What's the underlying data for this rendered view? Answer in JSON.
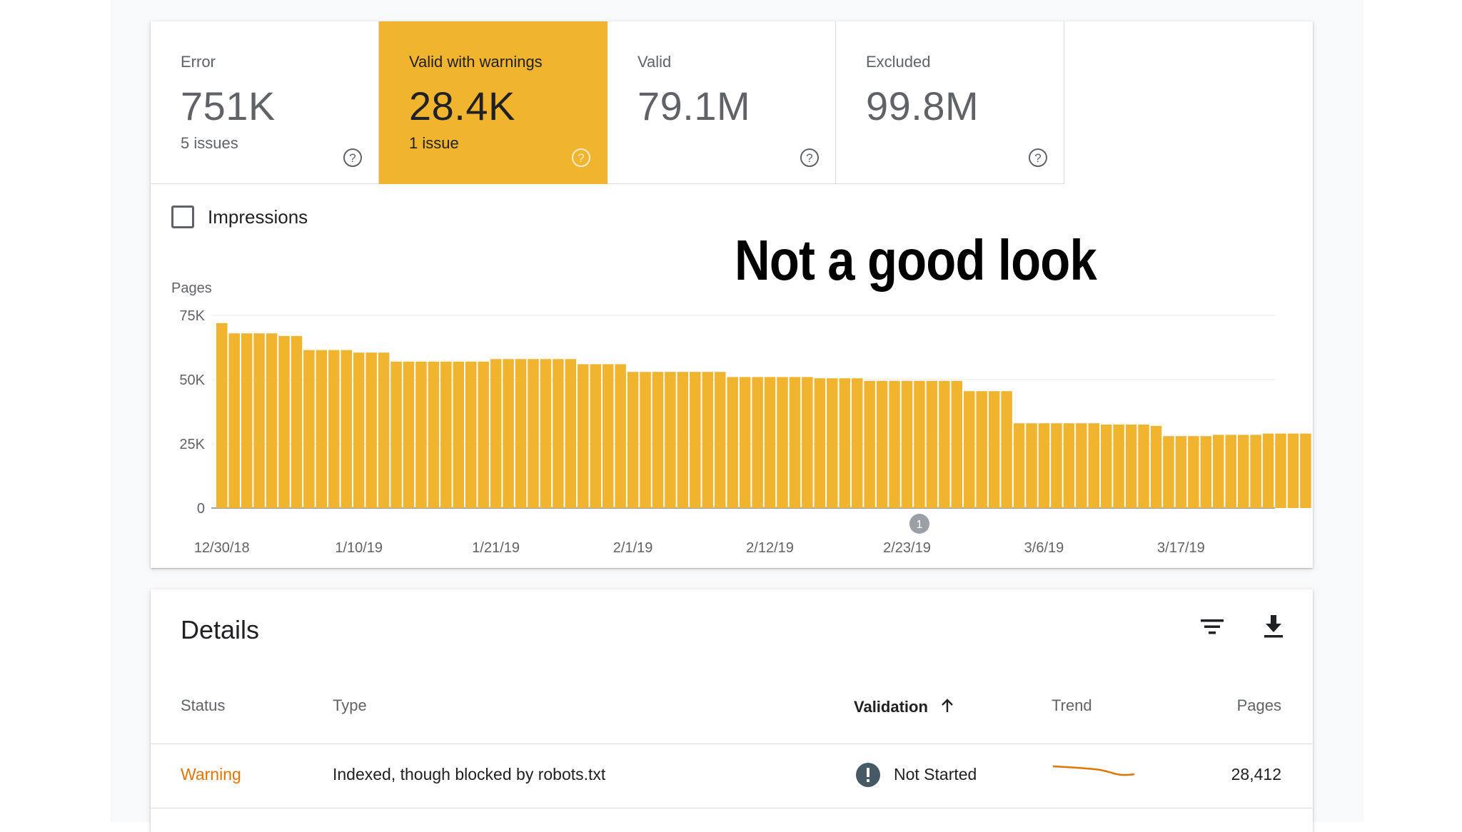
{
  "tiles": [
    {
      "label": "Error",
      "value": "751K",
      "sub": "5 issues",
      "active": false
    },
    {
      "label": "Valid with warnings",
      "value": "28.4K",
      "sub": "1 issue",
      "active": true
    },
    {
      "label": "Valid",
      "value": "79.1M",
      "sub": "",
      "active": false
    },
    {
      "label": "Excluded",
      "value": "99.8M",
      "sub": "",
      "active": false
    }
  ],
  "impressions": {
    "label": "Impressions",
    "checked": false
  },
  "overlay_caption": "Not a good look",
  "chart_data": {
    "type": "bar",
    "ylabel": "Pages",
    "ylim": [
      0,
      75000
    ],
    "yticks": [
      {
        "value": 0,
        "label": "0"
      },
      {
        "value": 25000,
        "label": "25K"
      },
      {
        "value": 50000,
        "label": "50K"
      },
      {
        "value": 75000,
        "label": "75K"
      }
    ],
    "start_date": "12/30/18",
    "xtick_labels": [
      "12/30/18",
      "1/10/19",
      "1/21/19",
      "2/1/19",
      "2/12/19",
      "2/23/19",
      "3/6/19",
      "3/17/19"
    ],
    "xtick_days": [
      0,
      11,
      22,
      33,
      44,
      55,
      66,
      77
    ],
    "values": [
      72000,
      68000,
      68000,
      68000,
      68000,
      67000,
      67000,
      61500,
      61500,
      61500,
      61500,
      60500,
      60500,
      60500,
      57000,
      57000,
      57000,
      57000,
      57000,
      57000,
      57000,
      57000,
      58000,
      58000,
      58000,
      58000,
      58000,
      58000,
      58000,
      56000,
      56000,
      56000,
      56000,
      53000,
      53000,
      53000,
      53000,
      53000,
      53000,
      53000,
      53000,
      51000,
      51000,
      51000,
      51000,
      51000,
      51000,
      51000,
      50500,
      50500,
      50500,
      50500,
      49500,
      49500,
      49500,
      49500,
      49500,
      49500,
      49500,
      49500,
      45500,
      45500,
      45500,
      45500,
      33000,
      33000,
      33000,
      33000,
      33000,
      33000,
      33000,
      32500,
      32500,
      32500,
      32500,
      32000,
      28000,
      28000,
      28000,
      28000,
      28500,
      28500,
      28500,
      28500,
      29000,
      29000,
      29000,
      29000
    ],
    "bar_color": "#f1b42f",
    "annotation": {
      "label": "1",
      "day": 56
    }
  },
  "details": {
    "title": "Details",
    "filter_icon": "filter-icon",
    "download_icon": "download-icon",
    "columns": {
      "status": "Status",
      "type": "Type",
      "validation": "Validation",
      "trend": "Trend",
      "pages": "Pages"
    },
    "rows": [
      {
        "status": "Warning",
        "status_color": "#e37400",
        "type": "Indexed, though blocked by robots.txt",
        "validation": "Not Started",
        "pages": "28,412",
        "trend_color": "#e37400"
      }
    ]
  }
}
